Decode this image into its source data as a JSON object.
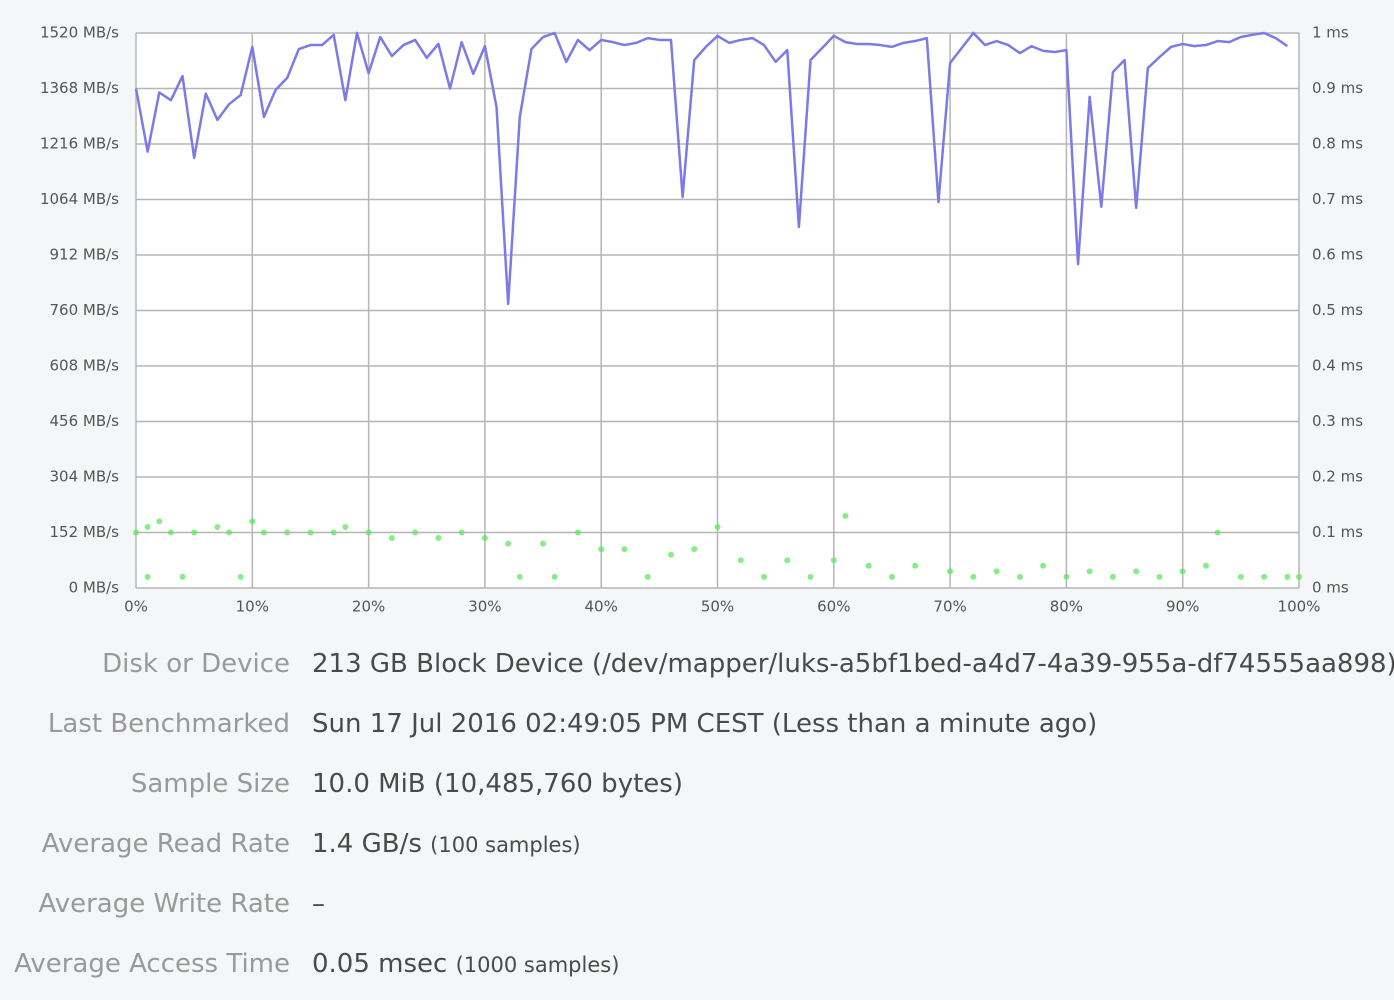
{
  "chart_data": {
    "type": "line",
    "xlim": [
      0,
      100
    ],
    "xticks": [
      {
        "value": 0,
        "label": "0%"
      },
      {
        "value": 10,
        "label": "10%"
      },
      {
        "value": 20,
        "label": "20%"
      },
      {
        "value": 30,
        "label": "30%"
      },
      {
        "value": 40,
        "label": "40%"
      },
      {
        "value": 50,
        "label": "50%"
      },
      {
        "value": 60,
        "label": "60%"
      },
      {
        "value": 70,
        "label": "70%"
      },
      {
        "value": 80,
        "label": "80%"
      },
      {
        "value": 90,
        "label": "90%"
      },
      {
        "value": 100,
        "label": "100%"
      }
    ],
    "ylim": [
      0,
      1520
    ],
    "yticks": [
      {
        "value": 0,
        "label": "0 MB/s"
      },
      {
        "value": 152,
        "label": "152 MB/s"
      },
      {
        "value": 304,
        "label": "304 MB/s"
      },
      {
        "value": 456,
        "label": "456 MB/s"
      },
      {
        "value": 608,
        "label": "608 MB/s"
      },
      {
        "value": 760,
        "label": "760 MB/s"
      },
      {
        "value": 912,
        "label": "912 MB/s"
      },
      {
        "value": 1064,
        "label": "1064 MB/s"
      },
      {
        "value": 1216,
        "label": "1216 MB/s"
      },
      {
        "value": 1368,
        "label": "1368 MB/s"
      },
      {
        "value": 1520,
        "label": "1520 MB/s"
      }
    ],
    "y2lim": [
      0,
      1
    ],
    "y2ticks": [
      {
        "value": 0,
        "label": "0 ms"
      },
      {
        "value": 0.1,
        "label": "0.1 ms"
      },
      {
        "value": 0.2,
        "label": "0.2 ms"
      },
      {
        "value": 0.3,
        "label": "0.3 ms"
      },
      {
        "value": 0.4,
        "label": "0.4 ms"
      },
      {
        "value": 0.5,
        "label": "0.5 ms"
      },
      {
        "value": 0.6,
        "label": "0.6 ms"
      },
      {
        "value": 0.7,
        "label": "0.7 ms"
      },
      {
        "value": 0.8,
        "label": "0.8 ms"
      },
      {
        "value": 0.9,
        "label": "0.9 ms"
      },
      {
        "value": 1,
        "label": "1 ms"
      }
    ],
    "grid": true,
    "series": [
      {
        "type": "line",
        "color": "#7b7be8",
        "x": [
          0,
          1,
          2,
          3,
          4,
          5,
          6,
          7,
          8,
          9,
          10,
          11,
          12,
          13,
          14,
          15,
          16,
          17,
          18,
          19,
          20,
          21,
          22,
          23,
          24,
          25,
          26,
          27,
          28,
          29,
          30,
          31,
          32,
          33,
          34,
          35,
          36,
          37,
          38,
          39,
          40,
          41,
          42,
          43,
          44,
          45,
          46,
          47,
          48,
          49,
          50,
          51,
          52,
          53,
          54,
          55,
          56,
          57,
          58,
          59,
          60,
          61,
          62,
          63,
          64,
          65,
          66,
          67,
          68,
          69,
          70,
          71,
          72,
          73,
          74,
          75,
          76,
          77,
          78,
          79,
          80,
          81,
          82,
          83,
          84,
          85,
          86,
          87,
          88,
          89,
          90,
          91,
          92,
          93,
          94,
          95,
          96,
          97,
          98,
          99
        ],
        "values": [
          1368,
          1195,
          1357,
          1336,
          1402,
          1178,
          1354,
          1282,
          1325,
          1350,
          1482,
          1290,
          1364,
          1397,
          1476,
          1487,
          1487,
          1515,
          1336,
          1520,
          1410,
          1509,
          1457,
          1487,
          1501,
          1452,
          1490,
          1368,
          1495,
          1408,
          1484,
          1317,
          778,
          1290,
          1476,
          1509,
          1520,
          1441,
          1501,
          1473,
          1501,
          1495,
          1487,
          1493,
          1506,
          1501,
          1501,
          1071,
          1446,
          1482,
          1512,
          1493,
          1501,
          1506,
          1487,
          1441,
          1473,
          989,
          1446,
          1479,
          1512,
          1495,
          1490,
          1490,
          1487,
          1482,
          1493,
          1498,
          1506,
          1057,
          1438,
          1479,
          1520,
          1487,
          1498,
          1487,
          1465,
          1484,
          1471,
          1468,
          1473,
          887,
          1345,
          1044,
          1413,
          1446,
          1041,
          1424,
          1454,
          1482,
          1490,
          1484,
          1487,
          1498,
          1495,
          1509,
          1515,
          1520,
          1506,
          1484
        ]
      },
      {
        "type": "scatter",
        "color": "#5ee85e",
        "axis": "y2",
        "x": [
          0,
          1,
          2,
          3,
          5,
          7,
          8,
          10,
          11,
          13,
          15,
          17,
          18,
          20,
          22,
          24,
          26,
          28,
          30,
          32,
          33,
          35,
          36,
          38,
          40,
          42,
          44,
          46,
          48,
          50,
          52,
          54,
          56,
          58,
          60,
          61,
          63,
          65,
          67,
          70,
          72,
          74,
          76,
          78,
          80,
          82,
          84,
          86,
          88,
          90,
          92,
          93,
          95,
          97,
          99,
          100,
          1,
          4,
          9
        ],
        "values": [
          0.1,
          0.11,
          0.12,
          0.1,
          0.1,
          0.11,
          0.1,
          0.12,
          0.1,
          0.1,
          0.1,
          0.1,
          0.11,
          0.1,
          0.09,
          0.1,
          0.09,
          0.1,
          0.09,
          0.08,
          0.02,
          0.08,
          0.02,
          0.1,
          0.07,
          0.07,
          0.02,
          0.06,
          0.07,
          0.11,
          0.05,
          0.02,
          0.05,
          0.02,
          0.05,
          0.13,
          0.04,
          0.02,
          0.04,
          0.03,
          0.02,
          0.03,
          0.02,
          0.04,
          0.02,
          0.03,
          0.02,
          0.03,
          0.02,
          0.03,
          0.04,
          0.1,
          0.02,
          0.02,
          0.02,
          0.02,
          0.02,
          0.02,
          0.02
        ]
      }
    ]
  },
  "details": [
    {
      "label": "Disk or Device",
      "value": "213 GB Block Device (/dev/mapper/luks-a5bf1bed-a4d7-4a39-955a-df74555aa898)"
    },
    {
      "label": "Last Benchmarked",
      "value": "Sun 17 Jul 2016 02:49:05 PM CEST (Less than a minute ago)"
    },
    {
      "label": "Sample Size",
      "value": "10.0 MiB (10,485,760 bytes)"
    },
    {
      "label": "Average Read Rate",
      "value": "1.4 GB/s",
      "note": "(100 samples)"
    },
    {
      "label": "Average Write Rate",
      "value": "–"
    },
    {
      "label": "Average Access Time",
      "value": "0.05 msec",
      "note": "(1000 samples)"
    }
  ]
}
